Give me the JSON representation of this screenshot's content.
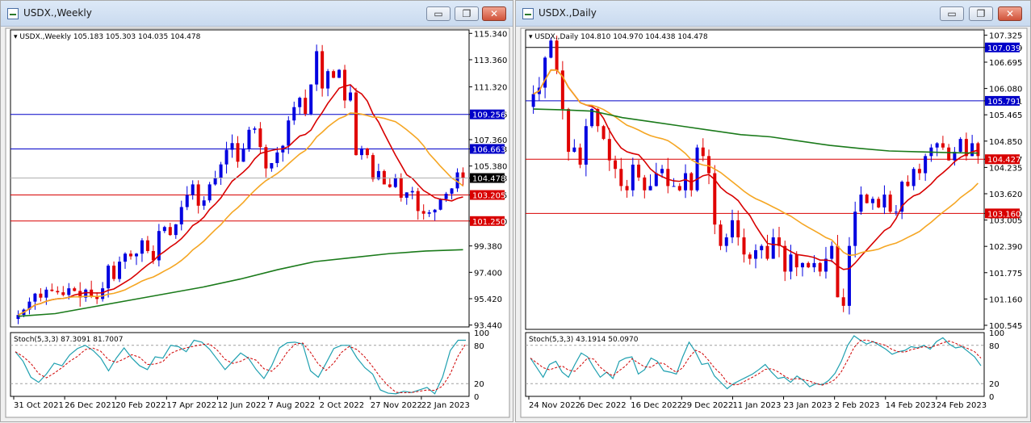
{
  "windows": [
    {
      "title": "USDX.,Weekly",
      "info_label": "USDX.,Weekly",
      "ohlc": "105.183 105.303 104.035 104.478",
      "price_ticks": [
        "115.340",
        "113.360",
        "111.320",
        "109.256",
        "107.360",
        "106.663",
        "105.380",
        "104.478",
        "103.205",
        "101.250",
        "99.380",
        "97.400",
        "95.420",
        "93.440"
      ],
      "h_lines": [
        {
          "value": "109.256",
          "color": "#0000c8",
          "label_bg": "#0000c8"
        },
        {
          "value": "106.663",
          "color": "#0000c8",
          "label_bg": "#0000c8"
        },
        {
          "value": "103.205",
          "color": "#d80000",
          "label_bg": "#d80000"
        },
        {
          "value": "101.250",
          "color": "#d80000",
          "label_bg": "#d80000"
        }
      ],
      "current_price": "104.478",
      "date_ticks": [
        "31 Oct 2021",
        "26 Dec 2021",
        "20 Feb 2022",
        "17 Apr 2022",
        "12 Jun 2022",
        "7 Aug 2022",
        "2 Oct 2022",
        "27 Nov 2022",
        "22 Jan 2023"
      ],
      "stoch_label": "Stoch(5,3,3) 87.3091 81.7007",
      "stoch_ticks": [
        "100",
        "80",
        "20",
        "0"
      ]
    },
    {
      "title": "USDX.,Daily",
      "info_label": "USDX.,Daily",
      "ohlc": "104.810 104.970 104.438 104.478",
      "price_ticks": [
        "107.325",
        "107.039",
        "106.695",
        "106.080",
        "105.791",
        "105.465",
        "104.850",
        "104.427",
        "104.235",
        "103.620",
        "103.160",
        "103.005",
        "102.390",
        "101.775",
        "101.160",
        "100.545"
      ],
      "h_lines": [
        {
          "value": "107.039",
          "color": "#000000",
          "label_bg": "#0000c8"
        },
        {
          "value": "105.791",
          "color": "#0000c8",
          "label_bg": "#0000c8"
        },
        {
          "value": "104.427",
          "color": "#d80000",
          "label_bg": "#d80000"
        },
        {
          "value": "103.160",
          "color": "#d80000",
          "label_bg": "#d80000"
        }
      ],
      "date_ticks": [
        "24 Nov 2022",
        "6 Dec 2022",
        "16 Dec 2022",
        "29 Dec 2022",
        "11 Jan 2023",
        "23 Jan 2023",
        "2 Feb 2023",
        "14 Feb 2023",
        "24 Feb 2023"
      ],
      "stoch_label": "Stoch(5,3,3) 43.1914 50.0970",
      "stoch_ticks": [
        "100",
        "80",
        "20",
        "0"
      ]
    }
  ],
  "colors": {
    "bull": "#0000e0",
    "bear": "#e00000",
    "ma_fast": "#d80000",
    "ma_mid": "#f5a623",
    "ma_slow": "#1a7a1a",
    "stoch_main": "#1fa0b0",
    "stoch_signal": "#d00000"
  },
  "buttons": {
    "minimize": "▭",
    "restore": "❐",
    "close": "✕"
  }
}
